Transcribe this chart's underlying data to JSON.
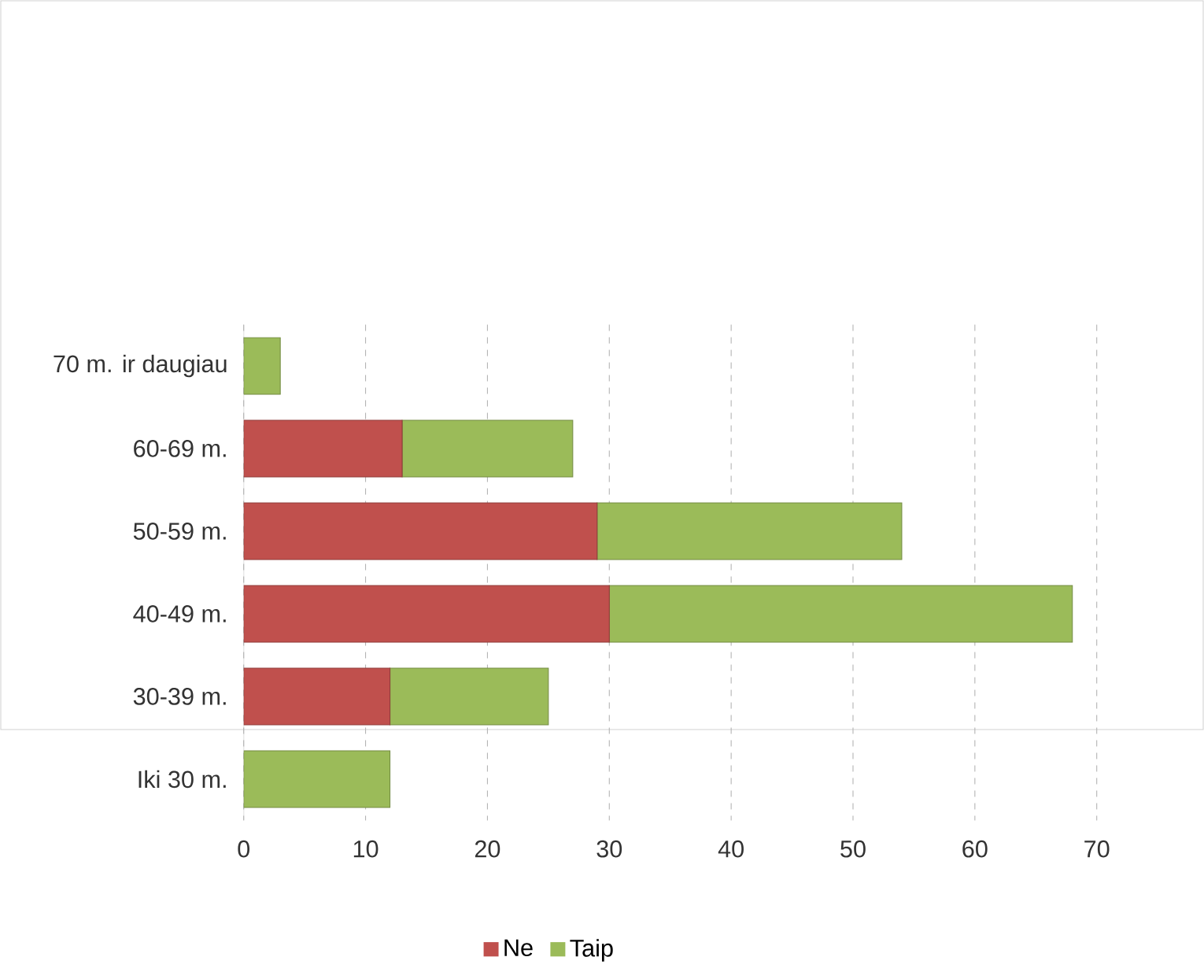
{
  "chart_data": {
    "type": "bar",
    "orientation": "horizontal",
    "stacked": true,
    "categories": [
      "70 m. ir daugiau",
      "60-69 m.",
      "50-59 m.",
      "40-49 m.",
      "30-39 m.",
      "Iki 30 m."
    ],
    "series": [
      {
        "name": "Ne",
        "color": "#c0504d",
        "values": [
          0,
          13,
          29,
          30,
          12,
          0
        ]
      },
      {
        "name": "Taip",
        "color": "#9bbb59",
        "values": [
          3,
          14,
          25,
          38,
          13,
          12
        ]
      }
    ],
    "xlim": [
      0,
      70
    ],
    "xticks": [
      0,
      10,
      20,
      30,
      40,
      50,
      60,
      70
    ],
    "grid": "x",
    "legend": "bottom"
  }
}
